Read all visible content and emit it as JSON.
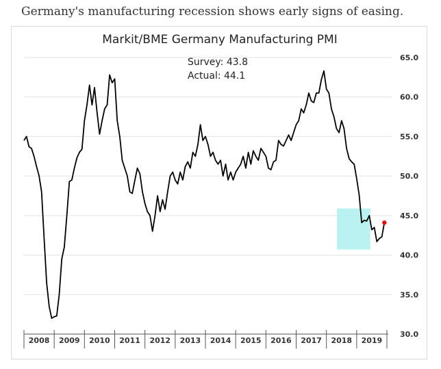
{
  "caption": "Germany's manufacturing recession shows early signs of easing.",
  "chart_data": {
    "type": "line",
    "title": "Markit/BME Germany Manufacturing PMI",
    "xlabel": "",
    "ylabel": "",
    "ylim": [
      30,
      65
    ],
    "yticks": [
      "30.0",
      "35.0",
      "40.0",
      "45.0",
      "50.0",
      "55.0",
      "60.0",
      "65.0"
    ],
    "grid": true,
    "line_color": "#000000",
    "highlight_color": "#aeeeee",
    "marker_color": "#dd1111",
    "years": [
      "2008",
      "2009",
      "2010",
      "2011",
      "2012",
      "2013",
      "2014",
      "2015",
      "2016",
      "2017",
      "2018",
      "2019"
    ],
    "annotations": {
      "survey": "Survey: 43.8",
      "actual": "Actual: 44.1"
    },
    "highlight": {
      "x_start": 2018.35,
      "x_end": 2019.45,
      "y_low": 40.7,
      "y_high": 45.9
    },
    "series": [
      {
        "name": "Germany Manufacturing PMI",
        "x": [
          2008.0,
          2008.083,
          2008.167,
          2008.25,
          2008.333,
          2008.417,
          2008.5,
          2008.583,
          2008.667,
          2008.75,
          2008.833,
          2008.917,
          2009.0,
          2009.083,
          2009.167,
          2009.25,
          2009.333,
          2009.417,
          2009.5,
          2009.583,
          2009.667,
          2009.75,
          2009.833,
          2009.917,
          2010.0,
          2010.083,
          2010.167,
          2010.25,
          2010.333,
          2010.417,
          2010.5,
          2010.583,
          2010.667,
          2010.75,
          2010.833,
          2010.917,
          2011.0,
          2011.083,
          2011.167,
          2011.25,
          2011.333,
          2011.417,
          2011.5,
          2011.583,
          2011.667,
          2011.75,
          2011.833,
          2011.917,
          2012.0,
          2012.083,
          2012.167,
          2012.25,
          2012.333,
          2012.417,
          2012.5,
          2012.583,
          2012.667,
          2012.75,
          2012.833,
          2012.917,
          2013.0,
          2013.083,
          2013.167,
          2013.25,
          2013.333,
          2013.417,
          2013.5,
          2013.583,
          2013.667,
          2013.75,
          2013.833,
          2013.917,
          2014.0,
          2014.083,
          2014.167,
          2014.25,
          2014.333,
          2014.417,
          2014.5,
          2014.583,
          2014.667,
          2014.75,
          2014.833,
          2014.917,
          2015.0,
          2015.083,
          2015.167,
          2015.25,
          2015.333,
          2015.417,
          2015.5,
          2015.583,
          2015.667,
          2015.75,
          2015.833,
          2015.917,
          2016.0,
          2016.083,
          2016.167,
          2016.25,
          2016.333,
          2016.417,
          2016.5,
          2016.583,
          2016.667,
          2016.75,
          2016.833,
          2016.917,
          2017.0,
          2017.083,
          2017.167,
          2017.25,
          2017.333,
          2017.417,
          2017.5,
          2017.583,
          2017.667,
          2017.75,
          2017.833,
          2017.917,
          2018.0,
          2018.083,
          2018.167,
          2018.25,
          2018.333,
          2018.417,
          2018.5,
          2018.583,
          2018.667,
          2018.75,
          2018.833,
          2018.917,
          2019.0,
          2019.083,
          2019.167,
          2019.25,
          2019.333,
          2019.417
        ],
        "values": [
          54.5,
          55.0,
          53.7,
          53.5,
          52.5,
          51.2,
          50.0,
          48.0,
          42.0,
          36.5,
          33.5,
          32.0,
          32.2,
          32.3,
          35.0,
          39.5,
          41.0,
          45.0,
          49.3,
          49.5,
          51.0,
          52.3,
          53.0,
          53.4,
          57.0,
          59.0,
          61.5,
          59.0,
          61.2,
          58.0,
          55.3,
          57.0,
          58.5,
          59.0,
          62.8,
          61.8,
          62.3,
          57.0,
          55.0,
          52.0,
          51.0,
          50.0,
          48.0,
          47.8,
          49.5,
          51.0,
          50.3,
          48.0,
          46.5,
          45.5,
          45.0,
          43.0,
          45.0,
          47.5,
          45.5,
          47.0,
          45.8,
          48.0,
          50.0,
          50.5,
          49.5,
          49.0,
          50.5,
          49.5,
          51.2,
          51.8,
          51.0,
          53.0,
          52.5,
          54.0,
          56.5,
          54.5,
          55.0,
          54.0,
          52.5,
          53.0,
          52.0,
          51.5,
          52.0,
          50.0,
          51.5,
          49.5,
          50.5,
          49.5,
          50.5,
          51.0,
          51.5,
          52.5,
          51.0,
          53.0,
          51.5,
          53.2,
          52.5,
          52.0,
          53.5,
          53.0,
          52.5,
          51.0,
          50.8,
          51.8,
          52.0,
          54.5,
          54.0,
          53.8,
          54.5,
          55.2,
          54.5,
          55.5,
          56.5,
          57.0,
          58.5,
          58.0,
          59.0,
          60.5,
          59.5,
          59.3,
          60.5,
          60.5,
          62.2,
          63.3,
          61.0,
          60.5,
          58.5,
          57.5,
          56.0,
          55.5,
          57.0,
          56.0,
          53.5,
          52.2,
          51.8,
          51.5,
          49.7,
          47.6,
          44.1,
          44.4,
          44.3,
          45.0
        ],
        "x_tail": [
          2019.5,
          2019.583,
          2019.667,
          2019.75
        ],
        "values_tail": [
          43.2,
          43.5,
          41.7,
          42.1
        ],
        "latest": {
          "x": 2019.917,
          "value": 44.1
        },
        "x_dip": 2019.833,
        "value_dip": 42.3
      }
    ]
  }
}
